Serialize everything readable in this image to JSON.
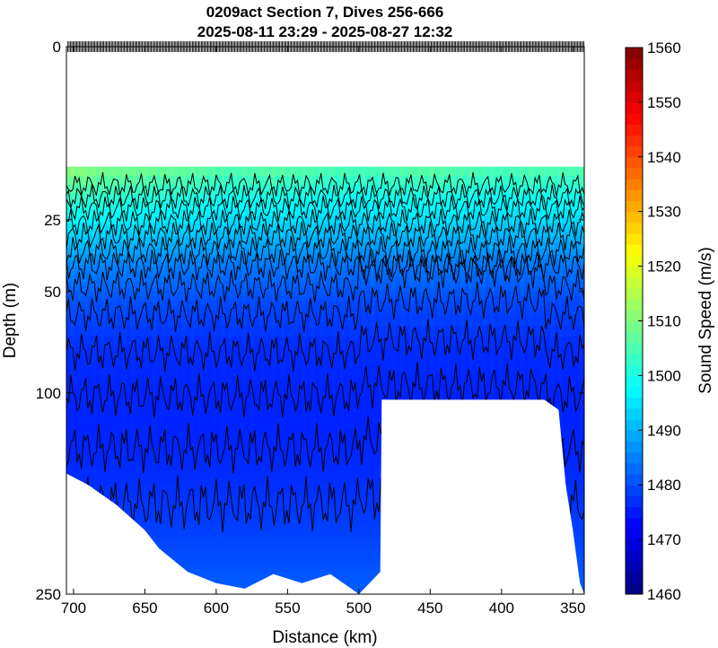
{
  "chart_data": {
    "type": "heatmap",
    "title": "0209act Section 7, Dives 256-666",
    "subtitle": "2025-08-11 23:29 - 2025-08-27 12:32",
    "xlabel": "Distance (km)",
    "ylabel": "Depth (m)",
    "colorbar_label": "Sound Speed (m/s)",
    "x_reversed": true,
    "xlim": [
      705,
      342
    ],
    "y_scale": "sqrt",
    "ylim": [
      0,
      250
    ],
    "y_reversed": true,
    "x_ticks": [
      700,
      650,
      600,
      550,
      500,
      450,
      400,
      350
    ],
    "y_ticks": [
      0,
      25,
      50,
      100,
      250
    ],
    "colorbar_ticks": [
      1460,
      1470,
      1480,
      1490,
      1500,
      1510,
      1520,
      1530,
      1540,
      1550,
      1560
    ],
    "clim": [
      1460,
      1560
    ],
    "colormap": "jet",
    "contour_interval": 2,
    "data_top_depth": 12,
    "surface_profile": {
      "distance_km": [
        705,
        680,
        650,
        620,
        590,
        560,
        530,
        500,
        480,
        450,
        420,
        400,
        380,
        360,
        342
      ],
      "sound_speed_ms": [
        1512,
        1510,
        1509,
        1508,
        1506,
        1507,
        1506,
        1505,
        1506,
        1507,
        1506,
        1505,
        1506,
        1506,
        1506
      ]
    },
    "depth_profile_sound_speed": {
      "depth_m": [
        12,
        20,
        30,
        40,
        55,
        75,
        100,
        130,
        160,
        200,
        250
      ],
      "sound_speed_ms": [
        1509,
        1500,
        1492,
        1485,
        1480,
        1477,
        1476,
        1476,
        1477,
        1479,
        1482
      ]
    },
    "max_depth_profile": {
      "distance_km": [
        705,
        690,
        670,
        650,
        640,
        620,
        600,
        580,
        560,
        540,
        520,
        500,
        485,
        484,
        370,
        360,
        355,
        350,
        345,
        342
      ],
      "max_depth_m": [
        152,
        160,
        175,
        195,
        210,
        230,
        240,
        245,
        232,
        240,
        232,
        250,
        230,
        104,
        104,
        110,
        160,
        195,
        240,
        250
      ]
    },
    "dive_markers": "dense row of surfacing ticks along 0 m across the full distance range"
  }
}
